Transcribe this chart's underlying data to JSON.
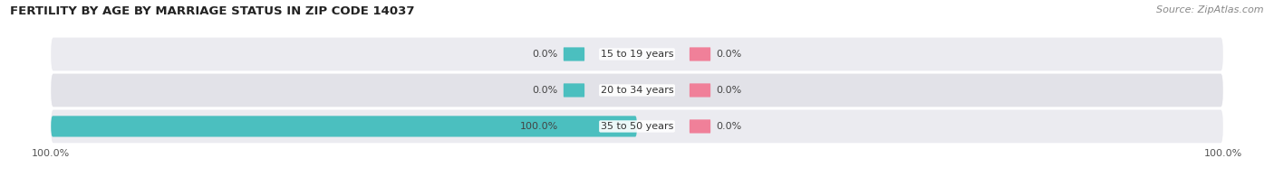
{
  "title": "FERTILITY BY AGE BY MARRIAGE STATUS IN ZIP CODE 14037",
  "source": "Source: ZipAtlas.com",
  "categories": [
    "15 to 19 years",
    "20 to 34 years",
    "35 to 50 years"
  ],
  "married_values": [
    0.0,
    0.0,
    100.0
  ],
  "unmarried_values": [
    0.0,
    0.0,
    0.0
  ],
  "married_color": "#4bbfbf",
  "unmarried_color": "#f08099",
  "row_bg_even": "#ebebf0",
  "row_bg_odd": "#e2e2e8",
  "title_fontsize": 9.5,
  "source_fontsize": 8,
  "label_fontsize": 8,
  "category_fontsize": 8,
  "x_axis_labels": [
    "100.0%",
    "100.0%"
  ],
  "bg_color": "#ffffff",
  "bar_height": 0.58,
  "center_label_bg": "#ffffff"
}
